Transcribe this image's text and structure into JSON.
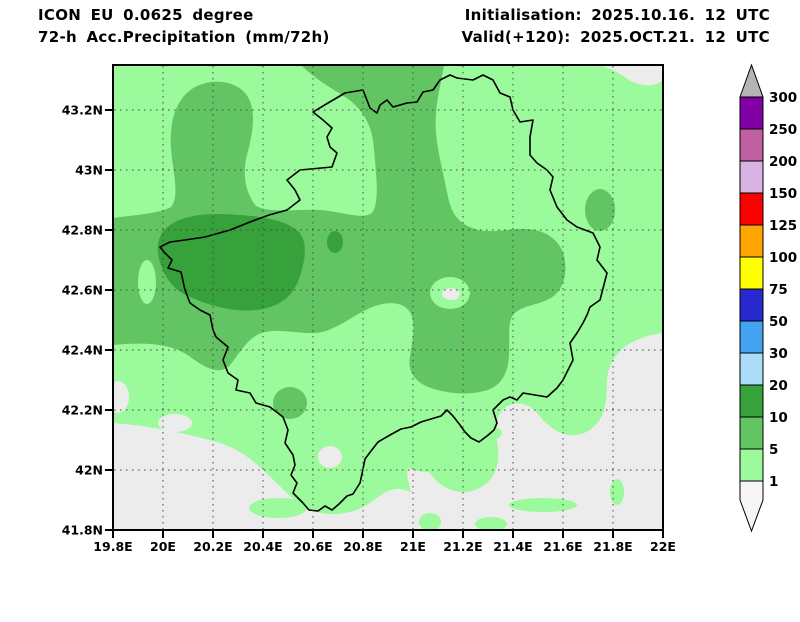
{
  "header": {
    "model_title": "ICON EU 0.0625 degree",
    "field_title": "72-h Acc.Precipitation (mm/72h)",
    "init_label": "Initialisation: 2025.10.16. 12 UTC",
    "valid_label": "Valid(+120): 2025.OCT.21. 12 UTC"
  },
  "map": {
    "lon_ticks": [
      {
        "label": "19.8E",
        "lon": 19.8
      },
      {
        "label": "20E",
        "lon": 20.0
      },
      {
        "label": "20.2E",
        "lon": 20.2
      },
      {
        "label": "20.4E",
        "lon": 20.4
      },
      {
        "label": "20.6E",
        "lon": 20.6
      },
      {
        "label": "20.8E",
        "lon": 20.8
      },
      {
        "label": "21E",
        "lon": 21.0
      },
      {
        "label": "21.2E",
        "lon": 21.2
      },
      {
        "label": "21.4E",
        "lon": 21.4
      },
      {
        "label": "21.6E",
        "lon": 21.6
      },
      {
        "label": "21.8E",
        "lon": 21.8
      },
      {
        "label": "22E",
        "lon": 22.0
      }
    ],
    "lat_ticks": [
      {
        "label": "43.2N",
        "lat": 43.2
      },
      {
        "label": "43N",
        "lat": 43.0
      },
      {
        "label": "42.8N",
        "lat": 42.8
      },
      {
        "label": "42.6N",
        "lat": 42.6
      },
      {
        "label": "42.4N",
        "lat": 42.4
      },
      {
        "label": "42.2N",
        "lat": 42.2
      },
      {
        "label": "42N",
        "lat": 42.0
      },
      {
        "label": "41.8N",
        "lat": 41.8
      }
    ],
    "bounds": {
      "lon_min": 19.8,
      "lon_max": 22.0,
      "lat_min": 41.8,
      "lat_max": 43.35
    },
    "colors": {
      "under_1mm": "#ececec",
      "band_1_5": "#9bfa9b",
      "band_5_10": "#62c462",
      "band_10_20": "#37a23c",
      "border": "#000000"
    }
  },
  "legend": {
    "values": [
      "300",
      "250",
      "200",
      "150",
      "125",
      "100",
      "75",
      "50",
      "30",
      "20",
      "10",
      "5",
      "1"
    ],
    "band_colors_top_to_bottom": [
      "#8000a6",
      "#c060a0",
      "#d8b2e2",
      "#fb0000",
      "#ffa500",
      "#ffff00",
      "#2828cf",
      "#44a3f0",
      "#aadcf8",
      "#37a23c",
      "#62c462",
      "#9bfa9b"
    ],
    "over_color": "#b4b4b4",
    "under_color": "#f6f6f6"
  }
}
